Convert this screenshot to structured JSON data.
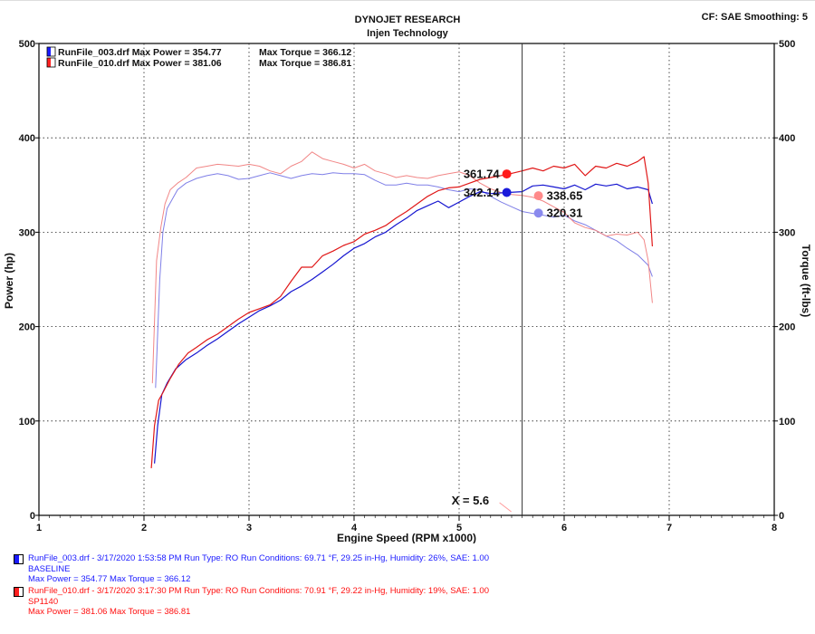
{
  "header": {
    "title": "DYNOJET RESEARCH",
    "subtitle": "Injen Technology",
    "settings": "CF: SAE  Smoothing: 5"
  },
  "legend": [
    {
      "file": "RunFile_003.drf",
      "max_power_label": "Max Power = 354.77",
      "max_torque_label": "Max Torque = 366.12",
      "color": "#1a1aff"
    },
    {
      "file": "RunFile_010.drf",
      "max_power_label": "Max Power = 381.06",
      "max_torque_label": "Max Torque = 386.81",
      "color": "#ff2020"
    }
  ],
  "cursor": {
    "label": "X = 5.6",
    "x": 5.6
  },
  "value_markers": [
    {
      "label": "361.74",
      "series": "RunFile_010.drf Power",
      "color": "#ff1a1a"
    },
    {
      "label": "342.14",
      "series": "RunFile_003.drf Power",
      "color": "#1a1adb"
    },
    {
      "label": "338.65",
      "series": "RunFile_010.drf Torque",
      "color": "#ff8a8a"
    },
    {
      "label": "320.31",
      "series": "RunFile_003.drf Torque",
      "color": "#8a8aee"
    }
  ],
  "runs": [
    {
      "swatch_color": "#1a1aff",
      "text_color": "#1a1aff",
      "line1": "RunFile_003.drf - 3/17/2020 1:53:58 PM  Run Type: RO  Run Conditions: 69.71 °F, 29.25 in-Hg,  Humidity:  26%, SAE: 1.00",
      "line2": "BASELINE",
      "line3": "Max Power = 354.77  Max Torque = 366.12"
    },
    {
      "swatch_color": "#ff2020",
      "text_color": "#ff1010",
      "line1": "RunFile_010.drf - 3/17/2020 3:17:30 PM  Run Type: RO  Run Conditions: 70.91 °F, 29.22 in-Hg,  Humidity:  19%, SAE: 1.00",
      "line2": "SP1140",
      "line3": "Max Power = 381.06  Max Torque = 386.81"
    }
  ],
  "chart_data": {
    "type": "line",
    "xlabel": "Engine Speed (RPM x1000)",
    "ylabel": "Power (hp)",
    "y2label": "Torque (ft-lbs)",
    "xlim": [
      1,
      8
    ],
    "ylim": [
      0,
      500
    ],
    "y2lim": [
      0,
      500
    ],
    "x_ticks": [
      1,
      2,
      3,
      4,
      5,
      6,
      7,
      8
    ],
    "y_ticks": [
      0,
      100,
      200,
      300,
      400,
      500
    ],
    "grid": true,
    "series": [
      {
        "name": "RunFile_003.drf Power",
        "color": "#1515d0",
        "opacity": 1.0,
        "width": 1.2,
        "x": [
          2.1,
          2.13,
          2.17,
          2.22,
          2.3,
          2.4,
          2.5,
          2.6,
          2.7,
          2.8,
          2.9,
          3.0,
          3.1,
          3.2,
          3.3,
          3.4,
          3.5,
          3.6,
          3.7,
          3.8,
          3.9,
          4.0,
          4.1,
          4.2,
          4.3,
          4.4,
          4.5,
          4.6,
          4.7,
          4.8,
          4.9,
          5.0,
          5.1,
          5.2,
          5.3,
          5.45,
          5.6,
          5.7,
          5.8,
          5.9,
          6.0,
          6.1,
          6.2,
          6.3,
          6.4,
          6.5,
          6.6,
          6.7,
          6.8,
          6.84
        ],
        "y": [
          55,
          95,
          128,
          140,
          155,
          165,
          172,
          180,
          187,
          195,
          203,
          210,
          217,
          222,
          228,
          237,
          243,
          250,
          258,
          266,
          275,
          283,
          288,
          295,
          300,
          308,
          315,
          323,
          328,
          333,
          326,
          332,
          338,
          343,
          341,
          342,
          343,
          349,
          350,
          348,
          346,
          350,
          345,
          351,
          349,
          351,
          346,
          348,
          345,
          330
        ]
      },
      {
        "name": "RunFile_010.drf Power",
        "color": "#e01818",
        "opacity": 1.0,
        "width": 1.2,
        "x": [
          2.07,
          2.1,
          2.14,
          2.18,
          2.25,
          2.33,
          2.42,
          2.5,
          2.6,
          2.7,
          2.8,
          2.9,
          3.0,
          3.1,
          3.2,
          3.3,
          3.4,
          3.5,
          3.6,
          3.7,
          3.8,
          3.9,
          4.0,
          4.1,
          4.2,
          4.3,
          4.4,
          4.5,
          4.6,
          4.7,
          4.8,
          4.9,
          5.0,
          5.1,
          5.2,
          5.3,
          5.45,
          5.6,
          5.7,
          5.8,
          5.9,
          6.0,
          6.1,
          6.2,
          6.3,
          6.4,
          6.5,
          6.6,
          6.7,
          6.76,
          6.8,
          6.84
        ],
        "y": [
          50,
          95,
          122,
          130,
          145,
          160,
          172,
          178,
          186,
          192,
          200,
          208,
          215,
          219,
          223,
          232,
          248,
          263,
          263,
          275,
          280,
          286,
          290,
          298,
          302,
          307,
          315,
          322,
          330,
          338,
          344,
          347,
          348,
          352,
          356,
          358,
          361,
          365,
          368,
          365,
          370,
          368,
          372,
          360,
          370,
          368,
          373,
          370,
          375,
          380,
          352,
          285
        ]
      },
      {
        "name": "RunFile_003.drf Torque",
        "color": "#7878e6",
        "opacity": 0.95,
        "width": 1.0,
        "x": [
          2.11,
          2.15,
          2.18,
          2.22,
          2.27,
          2.32,
          2.4,
          2.5,
          2.6,
          2.7,
          2.8,
          2.9,
          3.0,
          3.1,
          3.2,
          3.3,
          3.4,
          3.5,
          3.6,
          3.7,
          3.8,
          3.9,
          4.0,
          4.1,
          4.2,
          4.3,
          4.4,
          4.5,
          4.6,
          4.7,
          4.8,
          4.9,
          5.0,
          5.1,
          5.2,
          5.3,
          5.4,
          5.5,
          5.6,
          5.7,
          5.8,
          5.9,
          6.0,
          6.1,
          6.2,
          6.3,
          6.4,
          6.5,
          6.6,
          6.7,
          6.8,
          6.84
        ],
        "y": [
          135,
          250,
          300,
          325,
          335,
          345,
          352,
          357,
          360,
          362,
          360,
          356,
          357,
          360,
          363,
          360,
          357,
          360,
          362,
          361,
          363,
          362,
          362,
          361,
          355,
          350,
          350,
          352,
          350,
          350,
          348,
          345,
          343,
          346,
          345,
          338,
          332,
          327,
          322,
          320,
          318,
          316,
          318,
          312,
          308,
          302,
          296,
          291,
          283,
          276,
          265,
          253
        ]
      },
      {
        "name": "RunFile_010.drf Torque",
        "color": "#f08080",
        "opacity": 0.95,
        "width": 1.0,
        "x": [
          2.08,
          2.12,
          2.16,
          2.2,
          2.25,
          2.32,
          2.4,
          2.5,
          2.6,
          2.7,
          2.8,
          2.9,
          3.0,
          3.1,
          3.2,
          3.3,
          3.4,
          3.5,
          3.6,
          3.7,
          3.8,
          3.9,
          4.0,
          4.1,
          4.2,
          4.3,
          4.4,
          4.5,
          4.6,
          4.7,
          4.8,
          4.9,
          5.0,
          5.1,
          5.2,
          5.3,
          5.4,
          5.5,
          5.6,
          5.7,
          5.8,
          5.9,
          6.0,
          6.1,
          6.2,
          6.3,
          6.4,
          6.5,
          6.6,
          6.7,
          6.76,
          6.8,
          6.84
        ],
        "y": [
          140,
          270,
          305,
          330,
          345,
          352,
          358,
          368,
          370,
          372,
          371,
          370,
          372,
          370,
          365,
          362,
          370,
          375,
          385,
          378,
          375,
          372,
          368,
          372,
          365,
          362,
          358,
          360,
          358,
          357,
          360,
          362,
          364,
          360,
          352,
          346,
          342,
          340,
          339,
          337,
          333,
          327,
          321,
          310,
          305,
          302,
          296,
          298,
          297,
          300,
          292,
          270,
          225
        ]
      }
    ]
  }
}
